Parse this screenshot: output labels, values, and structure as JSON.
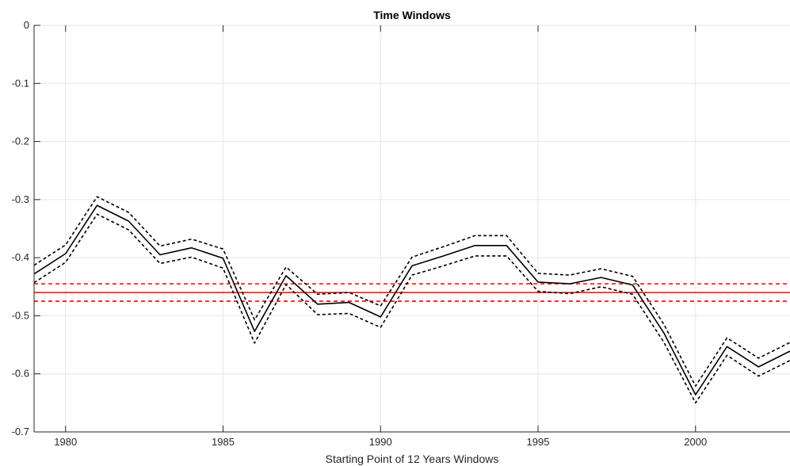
{
  "chart_data": {
    "type": "line",
    "title": "Time Windows",
    "xlabel": "Starting Point of 12 Years Windows",
    "ylabel": "",
    "xlim": [
      1979,
      2003
    ],
    "ylim": [
      -0.7,
      0
    ],
    "xticks": [
      1980,
      1985,
      1990,
      1995,
      2000
    ],
    "xtick_labels": [
      "1980",
      "1985",
      "1990",
      "1995",
      "2000"
    ],
    "yticks": [
      0,
      -0.1,
      -0.2,
      -0.3,
      -0.4,
      -0.5,
      -0.6,
      -0.7
    ],
    "ytick_labels": [
      "0",
      "-0.1",
      "-0.2",
      "-0.3",
      "-0.4",
      "-0.5",
      "-0.6",
      "-0.7"
    ],
    "grid": true,
    "x": [
      1979,
      1980,
      1981,
      1982,
      1983,
      1984,
      1985,
      1986,
      1987,
      1988,
      1989,
      1990,
      1991,
      1992,
      1993,
      1994,
      1995,
      1996,
      1997,
      1998,
      1999,
      2000,
      2001,
      2002,
      2003
    ],
    "series": [
      {
        "color": "#000000",
        "style": "solid",
        "values": [
          -0.428,
          -0.393,
          -0.31,
          -0.337,
          -0.395,
          -0.383,
          -0.401,
          -0.527,
          -0.431,
          -0.48,
          -0.477,
          -0.502,
          -0.414,
          -0.397,
          -0.379,
          -0.379,
          -0.442,
          -0.445,
          -0.434,
          -0.447,
          -0.53,
          -0.636,
          -0.553,
          -0.588,
          -0.561
        ]
      },
      {
        "color": "#000000",
        "style": "dashed",
        "values": [
          -0.413,
          -0.378,
          -0.295,
          -0.322,
          -0.38,
          -0.368,
          -0.385,
          -0.507,
          -0.416,
          -0.463,
          -0.46,
          -0.483,
          -0.399,
          -0.381,
          -0.362,
          -0.362,
          -0.427,
          -0.43,
          -0.419,
          -0.432,
          -0.515,
          -0.621,
          -0.538,
          -0.573,
          -0.546
        ]
      },
      {
        "color": "#000000",
        "style": "dashed",
        "values": [
          -0.443,
          -0.408,
          -0.325,
          -0.352,
          -0.41,
          -0.399,
          -0.418,
          -0.547,
          -0.446,
          -0.498,
          -0.496,
          -0.52,
          -0.43,
          -0.414,
          -0.397,
          -0.397,
          -0.458,
          -0.462,
          -0.45,
          -0.463,
          -0.546,
          -0.65,
          -0.568,
          -0.604,
          -0.577
        ]
      }
    ],
    "hlines": [
      {
        "y": -0.46,
        "color": "#ff0000",
        "style": "solid"
      },
      {
        "y": -0.445,
        "color": "#ff0000",
        "style": "dashed"
      },
      {
        "y": -0.475,
        "color": "#ff0000",
        "style": "dashed"
      }
    ]
  }
}
